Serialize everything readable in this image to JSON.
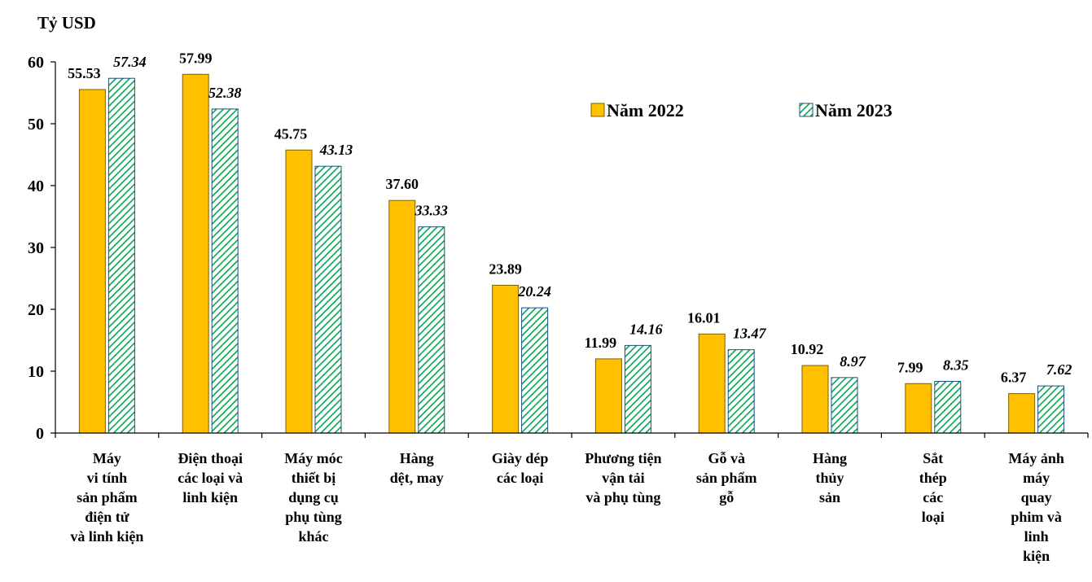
{
  "chart_data": {
    "type": "bar",
    "unit_label": "Tỷ USD",
    "categories": [
      [
        "Máy",
        "vi tính",
        "sản phẩm",
        "điện tử",
        "và linh kiện"
      ],
      [
        "Điện thoại",
        "các loại và",
        "linh kiện"
      ],
      [
        "Máy móc",
        "thiết bị",
        "dụng cụ",
        "phụ tùng",
        "khác"
      ],
      [
        "Hàng",
        "dệt, may"
      ],
      [
        "Giày dép",
        "các loại"
      ],
      [
        "Phương tiện",
        "vận tải",
        "và phụ tùng"
      ],
      [
        "Gỗ và",
        "sản phẩm",
        "gỗ"
      ],
      [
        "Hàng",
        "thủy",
        "sản"
      ],
      [
        "Sắt",
        "thép",
        "các",
        "loại"
      ],
      [
        "Máy ảnh",
        "máy",
        "quay",
        "phim và",
        "linh",
        "kiện"
      ]
    ],
    "series": [
      {
        "name": "Năm 2022",
        "values": [
          55.53,
          57.99,
          45.75,
          37.6,
          23.89,
          11.99,
          16.01,
          10.92,
          7.99,
          6.37
        ],
        "labels": [
          "55.53",
          "57.99",
          "45.75",
          "37.60",
          "23.89",
          "11.99",
          "16.01",
          "10.92",
          "7.99",
          "6.37"
        ],
        "color": "#FFC000",
        "pattern": "solid"
      },
      {
        "name": "Năm 2023",
        "values": [
          57.34,
          52.38,
          43.13,
          33.33,
          20.24,
          14.16,
          13.47,
          8.97,
          8.35,
          7.62
        ],
        "labels": [
          "57.34",
          "52.38",
          "43.13",
          "33.33",
          "20.24",
          "14.16",
          "13.47",
          "8.97",
          "8.35",
          "7.62"
        ],
        "color": "#00A651",
        "pattern": "diagonal-hatch"
      }
    ],
    "ylim": [
      0,
      60
    ],
    "yticks": [
      "0",
      "10",
      "20",
      "30",
      "40",
      "50",
      "60"
    ],
    "legend_position": "top-right",
    "grid": false
  }
}
